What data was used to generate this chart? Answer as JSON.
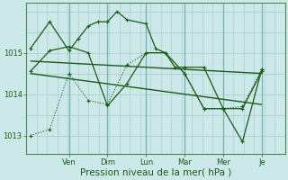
{
  "bg_color": "#cce8e8",
  "grid_color": "#aacfcf",
  "line_color": "#1a5c1a",
  "ylabel_ticks": [
    1013,
    1014,
    1015
  ],
  "ylim": [
    1012.55,
    1016.2
  ],
  "xlabel": "Pression niveau de la mer( hPa )",
  "xlabel_fontsize": 7.5,
  "day_labels": [
    "Ven",
    "Dim",
    "Lun",
    "Mar",
    "Mer",
    "Je"
  ],
  "day_positions": [
    2.0,
    4.0,
    6.0,
    8.0,
    10.0,
    12.0
  ],
  "xlim": [
    -0.2,
    13.2
  ],
  "series1_x": [
    0,
    1,
    2,
    2.5,
    3,
    3.5,
    4,
    4.5,
    5,
    6,
    6.5,
    7,
    7.5,
    8,
    9,
    10,
    11,
    12
  ],
  "series1_y": [
    1015.1,
    1015.75,
    1015.05,
    1015.35,
    1015.65,
    1015.75,
    1015.75,
    1016.0,
    1015.8,
    1015.7,
    1015.1,
    1015.0,
    1014.65,
    1014.65,
    1014.65,
    1013.65,
    1013.65,
    1014.55
  ],
  "series2_x": [
    0,
    1,
    2,
    3,
    4,
    5,
    6,
    7,
    8,
    9,
    10,
    11,
    12
  ],
  "series2_y": [
    1014.55,
    1015.05,
    1015.15,
    1015.0,
    1013.72,
    1014.25,
    1015.0,
    1015.0,
    1014.5,
    1013.65,
    1013.65,
    1012.85,
    1014.6
  ],
  "trend1_x": [
    0,
    12
  ],
  "trend1_y": [
    1014.8,
    1014.5
  ],
  "trend2_x": [
    0,
    12
  ],
  "trend2_y": [
    1014.5,
    1013.75
  ],
  "dotted_x": [
    0,
    1,
    2,
    3,
    4,
    5,
    6,
    7,
    8,
    9,
    10,
    11,
    12
  ],
  "dotted_y": [
    1013.0,
    1013.15,
    1014.5,
    1013.85,
    1013.75,
    1014.7,
    1015.0,
    1015.0,
    1014.5,
    1013.65,
    1013.65,
    1013.7,
    1014.6
  ]
}
